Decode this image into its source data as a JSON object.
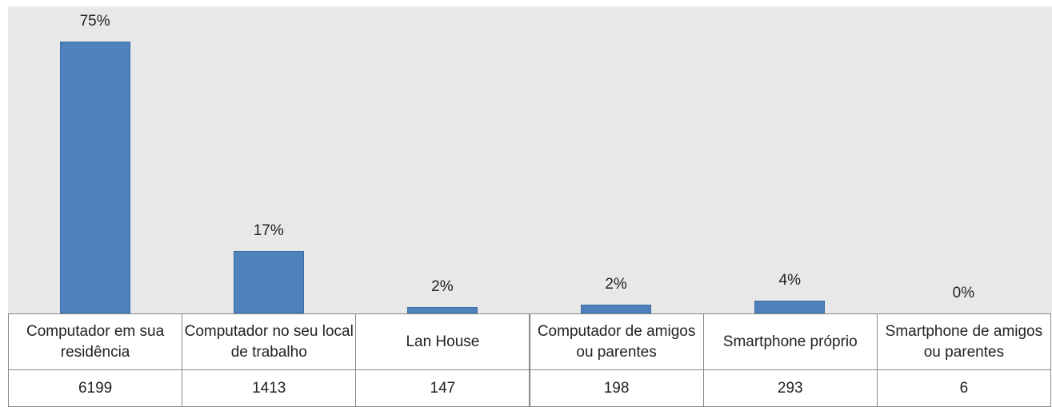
{
  "chart_data": {
    "type": "bar",
    "categories": [
      "Computador em sua residência",
      "Computador no seu local de trabalho",
      "Lan House",
      "Computador de amigos ou parentes",
      "Smartphone próprio",
      "Smartphone de amigos ou parentes"
    ],
    "values": [
      6199,
      1413,
      147,
      198,
      293,
      6
    ],
    "percent_labels": [
      "75%",
      "17%",
      "2%",
      "2%",
      "4%",
      "0%"
    ],
    "color": "#4f81bd",
    "ylim": [
      0,
      7000
    ]
  }
}
